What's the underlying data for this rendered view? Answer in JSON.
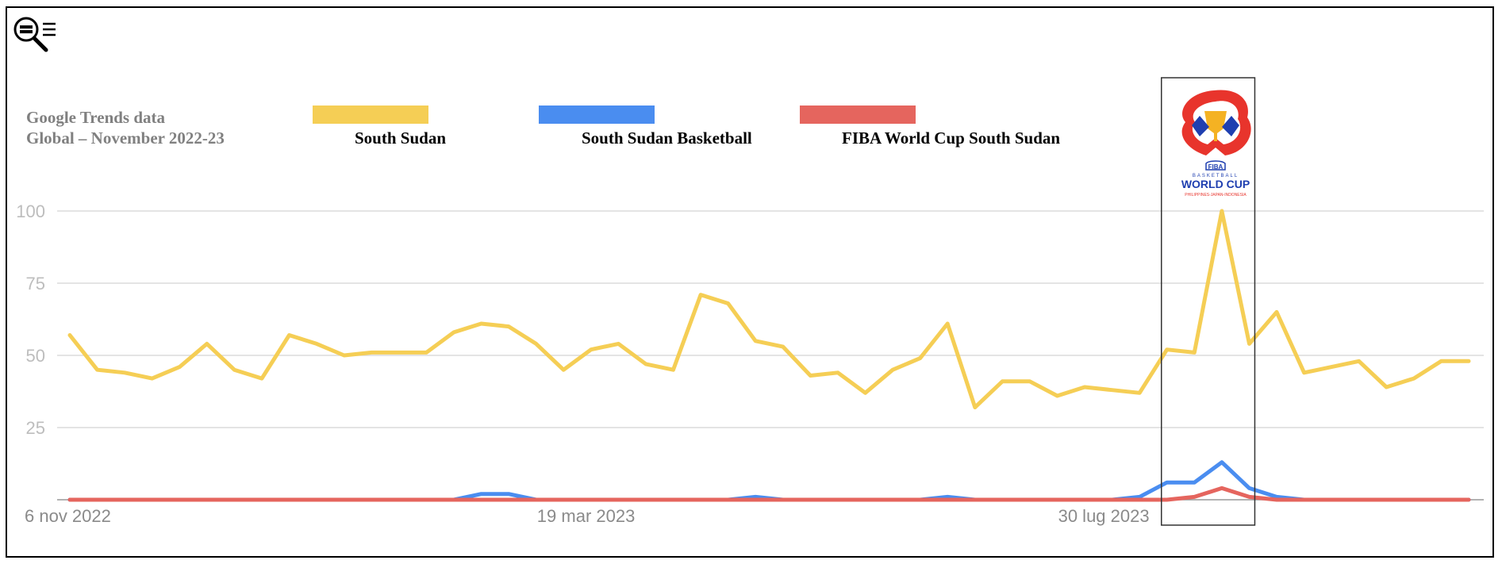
{
  "caption": {
    "line1": "Google Trends data",
    "line2": "Global – November 2022-23"
  },
  "logo": {
    "fiba": "FIBA",
    "basketball": "BASKETBALL",
    "worldcup": "WORLD CUP",
    "hosts": "PHILIPPINES-JAPAN-INDONESIA"
  },
  "colors": {
    "south_sudan": "#F5CE55",
    "basketball": "#4A8DF0",
    "fiba": "#E5655E",
    "grid": "#dcdcdc"
  },
  "chart_data": {
    "type": "line",
    "title": "",
    "xlabel": "",
    "ylabel": "",
    "ylim": [
      0,
      100
    ],
    "yticks": [
      25,
      50,
      75,
      100
    ],
    "xtick_labels": [
      {
        "label": "6 nov 2022",
        "index": 0
      },
      {
        "label": "19 mar 2023",
        "index": 19
      },
      {
        "label": "30 lug 2023",
        "index": 38
      }
    ],
    "highlight_range": [
      40,
      43
    ],
    "grid": true,
    "legend_position": "top",
    "series": [
      {
        "name": "South Sudan",
        "color": "#F5CE55",
        "values": [
          57,
          45,
          44,
          42,
          46,
          54,
          45,
          42,
          57,
          54,
          50,
          51,
          51,
          51,
          58,
          61,
          60,
          54,
          45,
          52,
          54,
          47,
          45,
          71,
          68,
          55,
          53,
          43,
          44,
          37,
          45,
          49,
          61,
          32,
          41,
          41,
          36,
          39,
          38,
          37,
          52,
          51,
          100,
          54,
          65,
          44,
          46,
          48,
          39,
          42,
          48,
          48
        ]
      },
      {
        "name": "South Sudan Basketball",
        "color": "#4A8DF0",
        "values": [
          0,
          0,
          0,
          0,
          0,
          0,
          0,
          0,
          0,
          0,
          0,
          0,
          0,
          0,
          0,
          2,
          2,
          0,
          0,
          0,
          0,
          0,
          0,
          0,
          0,
          1,
          0,
          0,
          0,
          0,
          0,
          0,
          1,
          0,
          0,
          0,
          0,
          0,
          0,
          1,
          6,
          6,
          13,
          4,
          1,
          0,
          0,
          0,
          0,
          0,
          0,
          0
        ]
      },
      {
        "name": "FIBA World Cup South Sudan",
        "color": "#E5655E",
        "values": [
          0,
          0,
          0,
          0,
          0,
          0,
          0,
          0,
          0,
          0,
          0,
          0,
          0,
          0,
          0,
          0,
          0,
          0,
          0,
          0,
          0,
          0,
          0,
          0,
          0,
          0,
          0,
          0,
          0,
          0,
          0,
          0,
          0,
          0,
          0,
          0,
          0,
          0,
          0,
          0,
          0,
          1,
          4,
          1,
          0,
          0,
          0,
          0,
          0,
          0,
          0,
          0
        ]
      }
    ]
  }
}
